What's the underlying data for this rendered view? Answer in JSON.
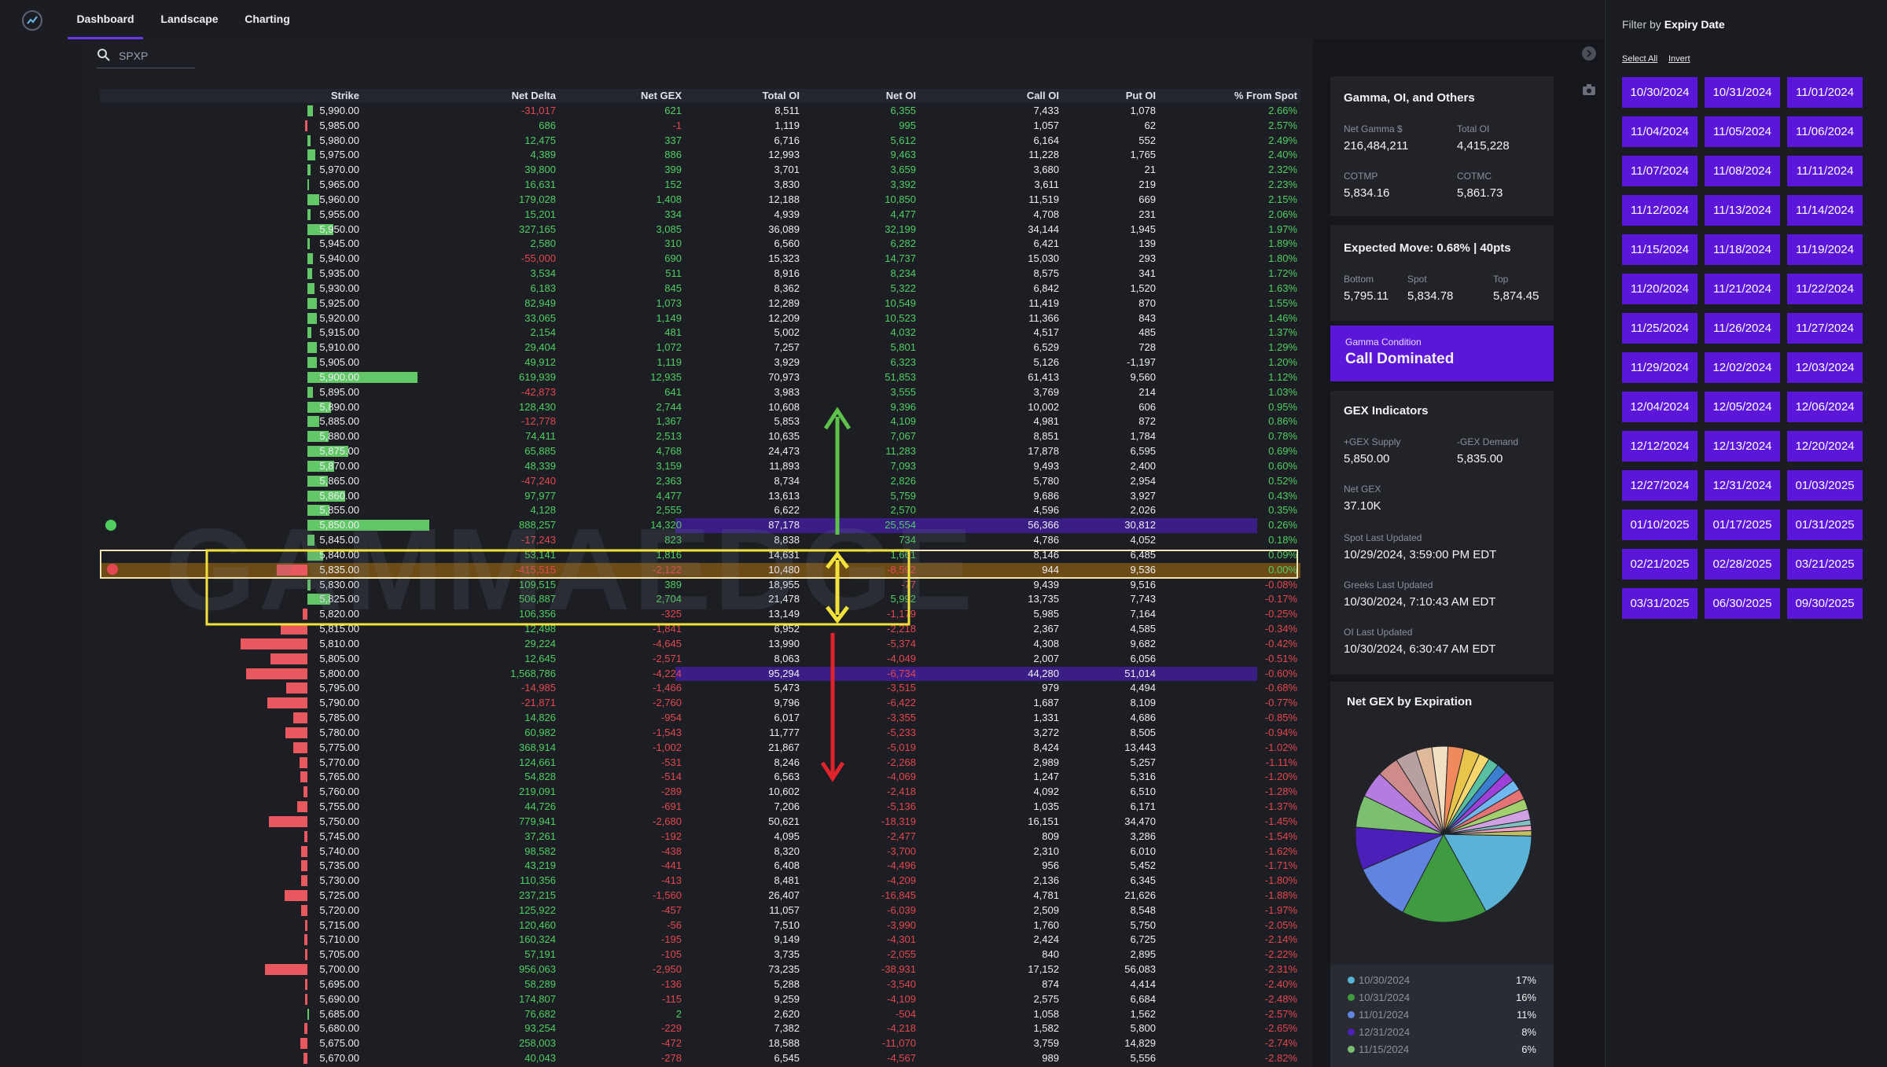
{
  "nav": {
    "tabs": [
      "Dashboard",
      "Landscape",
      "Charting"
    ]
  },
  "search": {
    "value": "SPXP"
  },
  "watermark": "GAMMAEDGE",
  "table": {
    "columns": [
      "Strike",
      "Net Delta",
      "Net GEX",
      "Total OI",
      "Net OI",
      "Call OI",
      "Put OI",
      "% From Spot"
    ],
    "rows": [
      [
        "5,990.00",
        "-31,017",
        "621",
        "8,511",
        "6,355",
        "7,433",
        "1,078",
        "2.66%"
      ],
      [
        "5,985.00",
        "686",
        "-1",
        "1,119",
        "995",
        "1,057",
        "62",
        "2.57%"
      ],
      [
        "5,980.00",
        "12,475",
        "337",
        "6,716",
        "5,612",
        "6,164",
        "552",
        "2.49%"
      ],
      [
        "5,975.00",
        "4,389",
        "886",
        "12,993",
        "9,463",
        "11,228",
        "1,765",
        "2.40%"
      ],
      [
        "5,970.00",
        "39,800",
        "399",
        "3,701",
        "3,659",
        "3,680",
        "21",
        "2.32%"
      ],
      [
        "5,965.00",
        "16,631",
        "152",
        "3,830",
        "3,392",
        "3,611",
        "219",
        "2.23%"
      ],
      [
        "5,960.00",
        "179,028",
        "1,408",
        "12,188",
        "10,850",
        "11,519",
        "669",
        "2.15%"
      ],
      [
        "5,955.00",
        "15,201",
        "334",
        "4,939",
        "4,477",
        "4,708",
        "231",
        "2.06%"
      ],
      [
        "5,950.00",
        "327,165",
        "3,085",
        "36,089",
        "32,199",
        "34,144",
        "1,945",
        "1.97%"
      ],
      [
        "5,945.00",
        "2,580",
        "310",
        "6,560",
        "6,282",
        "6,421",
        "139",
        "1.89%"
      ],
      [
        "5,940.00",
        "-55,000",
        "690",
        "15,323",
        "14,737",
        "15,030",
        "293",
        "1.80%"
      ],
      [
        "5,935.00",
        "3,534",
        "511",
        "8,916",
        "8,234",
        "8,575",
        "341",
        "1.72%"
      ],
      [
        "5,930.00",
        "6,183",
        "845",
        "8,362",
        "5,322",
        "6,842",
        "1,520",
        "1.63%"
      ],
      [
        "5,925.00",
        "82,949",
        "1,073",
        "12,289",
        "10,549",
        "11,419",
        "870",
        "1.55%"
      ],
      [
        "5,920.00",
        "33,065",
        "1,149",
        "12,209",
        "10,523",
        "11,366",
        "843",
        "1.46%"
      ],
      [
        "5,915.00",
        "2,154",
        "481",
        "5,002",
        "4,032",
        "4,517",
        "485",
        "1.37%"
      ],
      [
        "5,910.00",
        "29,404",
        "1,072",
        "7,257",
        "5,801",
        "6,529",
        "728",
        "1.29%"
      ],
      [
        "5,905.00",
        "49,912",
        "1,119",
        "3,929",
        "6,323",
        "5,126",
        "-1,197",
        "1.20%"
      ],
      [
        "5,900.00",
        "619,939",
        "12,935",
        "70,973",
        "51,853",
        "61,413",
        "9,560",
        "1.12%"
      ],
      [
        "5,895.00",
        "-42,873",
        "641",
        "3,983",
        "3,555",
        "3,769",
        "214",
        "1.03%"
      ],
      [
        "5,890.00",
        "128,430",
        "2,744",
        "10,608",
        "9,396",
        "10,002",
        "606",
        "0.95%"
      ],
      [
        "5,885.00",
        "-12,778",
        "1,367",
        "5,853",
        "4,109",
        "4,981",
        "872",
        "0.86%"
      ],
      [
        "5,880.00",
        "74,411",
        "2,513",
        "10,635",
        "7,067",
        "8,851",
        "1,784",
        "0.78%"
      ],
      [
        "5,875.00",
        "65,885",
        "4,768",
        "24,473",
        "11,283",
        "17,878",
        "6,595",
        "0.69%"
      ],
      [
        "5,870.00",
        "48,339",
        "3,159",
        "11,893",
        "7,093",
        "9,493",
        "2,400",
        "0.60%"
      ],
      [
        "5,865.00",
        "-47,240",
        "2,363",
        "8,734",
        "2,826",
        "5,780",
        "2,954",
        "0.52%"
      ],
      [
        "5,860.00",
        "97,977",
        "4,477",
        "13,613",
        "5,759",
        "9,686",
        "3,927",
        "0.43%"
      ],
      [
        "5,855.00",
        "4,128",
        "2,555",
        "6,622",
        "2,570",
        "4,596",
        "2,026",
        "0.35%"
      ],
      [
        "5,850.00",
        "888,257",
        "14,320",
        "87,178",
        "25,554",
        "56,366",
        "30,812",
        "0.26%"
      ],
      [
        "5,845.00",
        "-17,243",
        "823",
        "8,838",
        "734",
        "4,786",
        "4,052",
        "0.18%"
      ],
      [
        "5,840.00",
        "53,141",
        "1,816",
        "14,631",
        "1,661",
        "8,146",
        "6,485",
        "0.09%"
      ],
      [
        "5,835.00",
        "-415,515",
        "-2,122",
        "10,480",
        "-8,592",
        "944",
        "9,536",
        "0.00%"
      ],
      [
        "5,830.00",
        "109,515",
        "389",
        "18,955",
        "-77",
        "9,439",
        "9,516",
        "-0.08%"
      ],
      [
        "5,825.00",
        "506,887",
        "2,704",
        "21,478",
        "5,992",
        "13,735",
        "7,743",
        "-0.17%"
      ],
      [
        "5,820.00",
        "106,356",
        "-325",
        "13,149",
        "-1,179",
        "5,985",
        "7,164",
        "-0.25%"
      ],
      [
        "5,815.00",
        "12,498",
        "-1,841",
        "6,952",
        "-2,218",
        "2,367",
        "4,585",
        "-0.34%"
      ],
      [
        "5,810.00",
        "29,224",
        "-4,645",
        "13,990",
        "-5,374",
        "4,308",
        "9,682",
        "-0.42%"
      ],
      [
        "5,805.00",
        "12,645",
        "-2,571",
        "8,063",
        "-4,049",
        "2,007",
        "6,056",
        "-0.51%"
      ],
      [
        "5,800.00",
        "1,568,786",
        "-4,224",
        "95,294",
        "-6,734",
        "44,280",
        "51,014",
        "-0.60%"
      ],
      [
        "5,795.00",
        "-14,985",
        "-1,466",
        "5,473",
        "-3,515",
        "979",
        "4,494",
        "-0.68%"
      ],
      [
        "5,790.00",
        "-21,871",
        "-2,760",
        "9,796",
        "-6,422",
        "1,687",
        "8,109",
        "-0.77%"
      ],
      [
        "5,785.00",
        "14,826",
        "-954",
        "6,017",
        "-3,355",
        "1,331",
        "4,686",
        "-0.85%"
      ],
      [
        "5,780.00",
        "60,982",
        "-1,543",
        "11,777",
        "-5,233",
        "3,272",
        "8,505",
        "-0.94%"
      ],
      [
        "5,775.00",
        "368,914",
        "-1,002",
        "21,867",
        "-5,019",
        "8,424",
        "13,443",
        "-1.02%"
      ],
      [
        "5,770.00",
        "124,661",
        "-531",
        "8,246",
        "-2,268",
        "2,989",
        "5,257",
        "-1.11%"
      ],
      [
        "5,765.00",
        "54,828",
        "-514",
        "6,563",
        "-4,069",
        "1,247",
        "5,316",
        "-1.20%"
      ],
      [
        "5,760.00",
        "219,091",
        "-289",
        "10,602",
        "-2,418",
        "4,092",
        "6,510",
        "-1.28%"
      ],
      [
        "5,755.00",
        "44,726",
        "-691",
        "7,206",
        "-5,136",
        "1,035",
        "6,171",
        "-1.37%"
      ],
      [
        "5,750.00",
        "779,941",
        "-2,680",
        "50,621",
        "-18,319",
        "16,151",
        "34,470",
        "-1.45%"
      ],
      [
        "5,745.00",
        "37,261",
        "-192",
        "4,095",
        "-2,477",
        "809",
        "3,286",
        "-1.54%"
      ],
      [
        "5,740.00",
        "98,582",
        "-438",
        "8,320",
        "-3,700",
        "2,310",
        "6,010",
        "-1.62%"
      ],
      [
        "5,735.00",
        "43,219",
        "-441",
        "6,408",
        "-4,496",
        "956",
        "5,452",
        "-1.71%"
      ],
      [
        "5,730.00",
        "110,356",
        "-413",
        "8,481",
        "-4,209",
        "2,136",
        "6,345",
        "-1.80%"
      ],
      [
        "5,725.00",
        "237,215",
        "-1,560",
        "26,407",
        "-16,845",
        "4,781",
        "21,626",
        "-1.88%"
      ],
      [
        "5,720.00",
        "125,922",
        "-457",
        "11,057",
        "-6,039",
        "2,509",
        "8,548",
        "-1.97%"
      ],
      [
        "5,715.00",
        "120,460",
        "-56",
        "7,510",
        "-3,990",
        "1,760",
        "5,750",
        "-2.05%"
      ],
      [
        "5,710.00",
        "160,324",
        "-195",
        "9,149",
        "-4,301",
        "2,424",
        "6,725",
        "-2.14%"
      ],
      [
        "5,705.00",
        "57,191",
        "-105",
        "3,735",
        "-2,055",
        "840",
        "2,895",
        "-2.22%"
      ],
      [
        "5,700.00",
        "956,063",
        "-2,950",
        "73,235",
        "-38,931",
        "17,152",
        "56,083",
        "-2.31%"
      ],
      [
        "5,695.00",
        "58,289",
        "-136",
        "5,288",
        "-3,540",
        "874",
        "4,414",
        "-2.40%"
      ],
      [
        "5,690.00",
        "174,807",
        "-115",
        "9,259",
        "-4,109",
        "2,575",
        "6,684",
        "-2.48%"
      ],
      [
        "5,685.00",
        "76,682",
        "2",
        "2,620",
        "-504",
        "1,058",
        "1,562",
        "-2.57%"
      ],
      [
        "5,680.00",
        "93,254",
        "-229",
        "7,382",
        "-4,218",
        "1,582",
        "5,800",
        "-2.65%"
      ],
      [
        "5,675.00",
        "258,003",
        "-472",
        "18,588",
        "-11,070",
        "3,759",
        "14,829",
        "-2.74%"
      ],
      [
        "5,670.00",
        "40,043",
        "-278",
        "6,545",
        "-4,567",
        "989",
        "5,556",
        "-2.82%"
      ]
    ]
  },
  "gamma_card": {
    "title": "Gamma, OI, and Others",
    "net_gamma_label": "Net Gamma $",
    "net_gamma": "216,484,211",
    "total_oi_label": "Total OI",
    "total_oi": "4,415,228",
    "cotmp_label": "COTMP",
    "cotmp": "5,834.16",
    "cotmc_label": "COTMC",
    "cotmc": "5,861.73"
  },
  "expected_move": {
    "title": "Expected Move: 0.68% | 40pts",
    "bottom_label": "Bottom",
    "bottom": "5,795.11",
    "spot_label": "Spot",
    "spot": "5,834.78",
    "top_label": "Top",
    "top": "5,874.45"
  },
  "gamma_condition": {
    "label": "Gamma Condition",
    "value": "Call Dominated"
  },
  "gex_indicators": {
    "title": "GEX Indicators",
    "supply_label": "+GEX Supply",
    "supply": "5,850.00",
    "demand_label": "-GEX Demand",
    "demand": "5,835.00",
    "net_gex_label": "Net GEX",
    "net_gex": "37.10K",
    "spot_updated_label": "Spot Last Updated",
    "spot_updated": "10/29/2024, 3:59:00 PM EDT",
    "greeks_updated_label": "Greeks Last Updated",
    "greeks_updated": "10/30/2024, 7:10:43 AM EDT",
    "oi_updated_label": "OI Last Updated",
    "oi_updated": "10/30/2024, 6:30:47 AM EDT"
  },
  "net_gex_expiration": {
    "title": "Net GEX by Expiration",
    "legend": [
      {
        "date": "10/30/2024",
        "pct": "17%",
        "color": "#5ab3d6"
      },
      {
        "date": "10/31/2024",
        "pct": "16%",
        "color": "#3f9b3f"
      },
      {
        "date": "11/01/2024",
        "pct": "11%",
        "color": "#6184e0"
      },
      {
        "date": "12/31/2024",
        "pct": "8%",
        "color": "#4b1fb8"
      },
      {
        "date": "11/15/2024",
        "pct": "6%",
        "color": "#7cbf6e"
      }
    ],
    "slices": [
      17,
      16,
      11,
      8,
      6,
      5,
      4,
      4,
      3,
      3,
      3,
      3,
      2,
      2,
      2,
      2,
      2,
      2,
      2,
      2,
      1,
      1,
      1
    ],
    "slice_colors": [
      "#5ab3d6",
      "#3f9b3f",
      "#6184e0",
      "#4b1fb8",
      "#7cbf6e",
      "#b57be0",
      "#cf8a8a",
      "#b8a0a0",
      "#e0b89a",
      "#f2e0c2",
      "#f08a5d",
      "#e8c44a",
      "#f5d76e",
      "#58c0a0",
      "#3a7fd0",
      "#9f3fd9",
      "#6fb7f0",
      "#e57373",
      "#a1d06d",
      "#d0a0e0",
      "#80c0c0",
      "#f0a0c0",
      "#c0c060"
    ]
  },
  "filter": {
    "title_prefix": "Filter by ",
    "title_bold": "Expiry Date",
    "select_all": "Select All",
    "invert": "Invert",
    "dates": [
      "10/30/2024",
      "10/31/2024",
      "11/01/2024",
      "11/04/2024",
      "11/05/2024",
      "11/06/2024",
      "11/07/2024",
      "11/08/2024",
      "11/11/2024",
      "11/12/2024",
      "11/13/2024",
      "11/14/2024",
      "11/15/2024",
      "11/18/2024",
      "11/19/2024",
      "11/20/2024",
      "11/21/2024",
      "11/22/2024",
      "11/25/2024",
      "11/26/2024",
      "11/27/2024",
      "11/29/2024",
      "12/02/2024",
      "12/03/2024",
      "12/04/2024",
      "12/05/2024",
      "12/06/2024",
      "12/12/2024",
      "12/13/2024",
      "12/20/2024",
      "12/27/2024",
      "12/31/2024",
      "01/03/2025",
      "01/10/2025",
      "01/17/2025",
      "01/31/2025",
      "02/21/2025",
      "02/28/2025",
      "03/21/2025",
      "03/31/2025",
      "06/30/2025",
      "09/30/2025"
    ]
  },
  "colors": {
    "accent": "#5b16d9",
    "positive": "#4fcf62",
    "negative": "#e3474f",
    "highlight": "#3a1d85",
    "box": "#f1e13a"
  },
  "icons": {
    "logo": "trend-logo-icon",
    "search": "search-icon",
    "collapse": "chevron-right-icon",
    "camera": "camera-icon"
  }
}
